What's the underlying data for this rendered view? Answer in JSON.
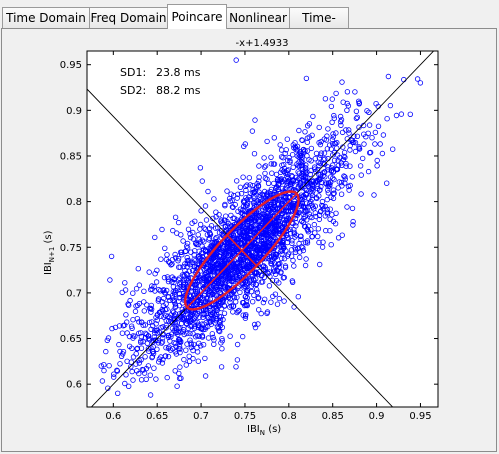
{
  "tabs": [
    {
      "label": "Time Domain",
      "active": false
    },
    {
      "label": "Freq Domain",
      "active": false
    },
    {
      "label": "Poincare",
      "active": true
    },
    {
      "label": "Nonlinear",
      "active": false
    },
    {
      "label": "Time-Freq",
      "active": false
    }
  ],
  "plot": {
    "title": "-x+1.4933",
    "sd1_label": "SD1:",
    "sd1_value": "23.8 ms",
    "sd2_label": "SD2:",
    "sd2_value": "88.2 ms",
    "xlabel_main": "IBI",
    "xlabel_sub": "N",
    "xlabel_unit": " (s)",
    "ylabel_main": "IBI",
    "ylabel_sub": "N+1",
    "ylabel_unit": " (s)"
  },
  "chart_data": {
    "type": "scatter",
    "title": "-x+1.4933",
    "xlabel": "IBI_N (s)",
    "ylabel": "IBI_N+1 (s)",
    "xlim": [
      0.57,
      0.97
    ],
    "ylim": [
      0.575,
      0.965
    ],
    "xticks": [
      0.6,
      0.65,
      0.7,
      0.75,
      0.8,
      0.85,
      0.9,
      0.95
    ],
    "yticks": [
      0.6,
      0.65,
      0.7,
      0.75,
      0.8,
      0.85,
      0.9,
      0.95
    ],
    "grid": false,
    "series": [
      {
        "kind": "points",
        "marker": "circle-open",
        "color": "#0000ff",
        "mean": [
          0.7465,
          0.7465
        ],
        "sd1": 0.0238,
        "sd2": 0.0882,
        "count": 2600
      },
      {
        "kind": "identity-line",
        "color": "#000000",
        "slope": 1,
        "intercept": 0
      },
      {
        "kind": "perpendicular-line",
        "color": "#000000",
        "slope": -1,
        "intercept": 1.4933
      },
      {
        "kind": "sd-ellipse",
        "color": "#e0202c",
        "center": [
          0.7465,
          0.7465
        ],
        "sd1": 0.0238,
        "sd2": 0.0882
      }
    ],
    "sample_points": [
      [
        0.605,
        0.59
      ],
      [
        0.74,
        0.955
      ],
      [
        0.82,
        0.935
      ],
      [
        0.95,
        0.93
      ],
      [
        0.598,
        0.74
      ],
      [
        0.66,
        0.64
      ],
      [
        0.69,
        0.71
      ],
      [
        0.73,
        0.75
      ],
      [
        0.76,
        0.78
      ],
      [
        0.8,
        0.8
      ],
      [
        0.85,
        0.84
      ],
      [
        0.88,
        0.86
      ],
      [
        0.64,
        0.62
      ],
      [
        0.72,
        0.69
      ],
      [
        0.78,
        0.74
      ]
    ]
  }
}
